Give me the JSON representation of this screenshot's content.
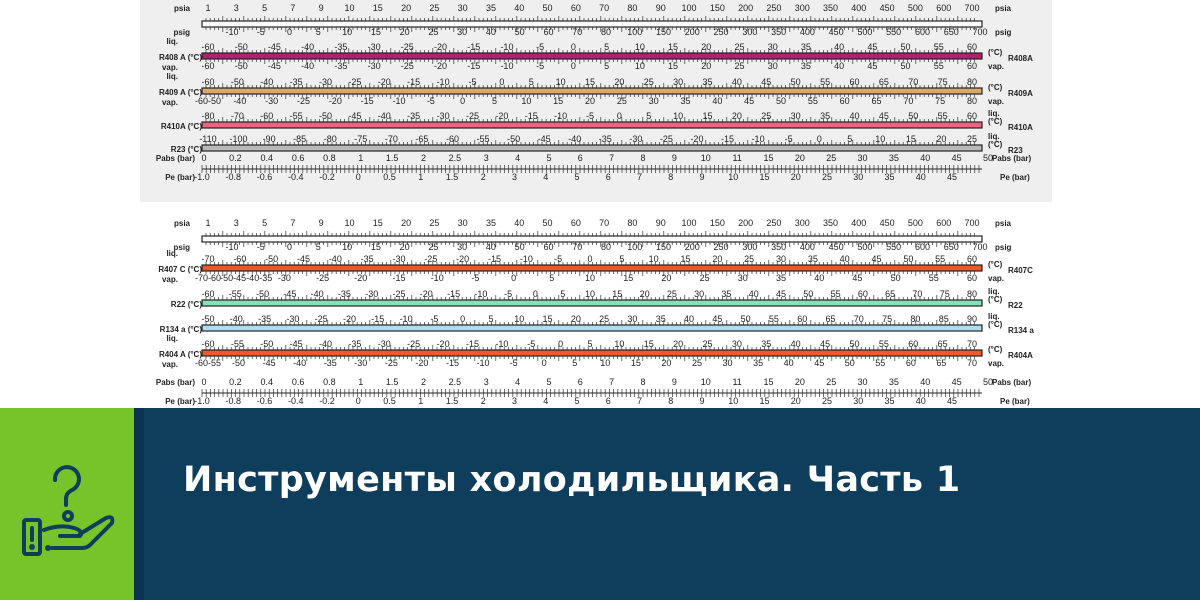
{
  "banner": {
    "title": "Инструменты холодильщика. Часть 1",
    "icon": "hand-question-icon",
    "colors": {
      "green": "#76c42a",
      "navy": "#0f3d5c",
      "icon": "#0f3d5c"
    }
  },
  "scales": {
    "labels": {
      "psia": "psia",
      "psig": "psig",
      "liq": "liq.",
      "vap": "vap.",
      "unit": "(°C)",
      "pabs": "Pabs (bar)",
      "pe": "Pe (bar)"
    },
    "psia": [
      "1",
      "3",
      "5",
      "7",
      "9",
      "10",
      "15",
      "20",
      "25",
      "30",
      "35",
      "40",
      "50",
      "60",
      "70",
      "80",
      "90",
      "100",
      "150",
      "200",
      "250",
      "300",
      "350",
      "400",
      "450",
      "500",
      "600",
      "700"
    ],
    "psig": [
      "-10",
      "-5",
      "0",
      "5",
      "10",
      "15",
      "20",
      "25",
      "30",
      "40",
      "50",
      "60",
      "70",
      "80",
      "100",
      "150",
      "200",
      "250",
      "300",
      "350",
      "400",
      "450",
      "500",
      "550",
      "600",
      "650",
      "700"
    ],
    "pabs": [
      "0",
      "0.2",
      "0.4",
      "0.6",
      "0.8",
      "1",
      "1.5",
      "2",
      "2.5",
      "3",
      "4",
      "5",
      "6",
      "7",
      "8",
      "9",
      "10",
      "11",
      "15",
      "20",
      "25",
      "30",
      "35",
      "40",
      "45",
      "50"
    ],
    "pe": [
      "-1.0",
      "-0.8",
      "-0.6",
      "-0.4",
      "-0.2",
      "0",
      "0.5",
      "1",
      "1.5",
      "2",
      "3",
      "4",
      "5",
      "6",
      "7",
      "8",
      "9",
      "10",
      "15",
      "20",
      "25",
      "30",
      "35",
      "40",
      "45"
    ],
    "top_panel": [
      {
        "name": "R408 A",
        "right": "R408A",
        "color": "#b0226e",
        "liq": [
          "-60",
          "-50",
          "-45",
          "-40",
          "-35",
          "-30",
          "-25",
          "-20",
          "-15",
          "-10",
          "-5",
          "0",
          "5",
          "10",
          "15",
          "20",
          "25",
          "30",
          "35",
          "40",
          "45",
          "50",
          "55",
          "60"
        ],
        "vap": [
          "-60",
          "-50",
          "-45",
          "-40",
          "-35",
          "-30",
          "-25",
          "-20",
          "-15",
          "-10",
          "-5",
          "0",
          "5",
          "10",
          "15",
          "20",
          "25",
          "30",
          "35",
          "40",
          "45",
          "50",
          "55",
          "60"
        ]
      },
      {
        "name": "R409 A",
        "right": "R409A",
        "color": "#dba96c",
        "liq": [
          "-60",
          "-50",
          "-40",
          "-35",
          "-30",
          "-25",
          "-20",
          "-15",
          "-10",
          "-5",
          "0",
          "5",
          "10",
          "15",
          "20",
          "25",
          "30",
          "35",
          "40",
          "45",
          "50",
          "55",
          "60",
          "65",
          "70",
          "75",
          "80"
        ],
        "vap": [
          "-60-50",
          "-40",
          "-30",
          "-25",
          "-20",
          "-15",
          "-10",
          "-5",
          "0",
          "5",
          "10",
          "15",
          "20",
          "25",
          "30",
          "35",
          "40",
          "45",
          "50",
          "55",
          "60",
          "65",
          "70",
          "75",
          "80"
        ]
      },
      {
        "name": "R410A",
        "right": "R410A",
        "color": "#ea6680",
        "liq": [
          "-80",
          "-70",
          "-60",
          "-55",
          "-50",
          "-45",
          "-40",
          "-35",
          "-30",
          "-25",
          "-20",
          "-15",
          "-10",
          "-5",
          "0",
          "5",
          "10",
          "15",
          "20",
          "25",
          "30",
          "35",
          "40",
          "45",
          "50",
          "55",
          "60"
        ]
      },
      {
        "name": "R23",
        "right": "R23",
        "color": "#b9b9b9",
        "liq": [
          "-110",
          "-100",
          "-90",
          "-85",
          "-80",
          "-75",
          "-70",
          "-65",
          "-60",
          "-55",
          "-50",
          "-45",
          "-40",
          "-35",
          "-30",
          "-25",
          "-20",
          "-15",
          "-10",
          "-5",
          "0",
          "5",
          "10",
          "15",
          "20",
          "25"
        ]
      }
    ],
    "bottom_panel": [
      {
        "name": "R407 C",
        "right": "R407C",
        "color": "#e8582a",
        "liq": [
          "-70",
          "-60",
          "-50",
          "-45",
          "-40",
          "-35",
          "-30",
          "-25",
          "-20",
          "-15",
          "-10",
          "-5",
          "0",
          "5",
          "10",
          "15",
          "20",
          "25",
          "30",
          "35",
          "40",
          "45",
          "50",
          "55",
          "60"
        ],
        "vap": [
          "-70-60",
          "-50-45-40-35",
          "-30",
          "-25",
          "-20",
          "-15",
          "-10",
          "-5",
          "0",
          "5",
          "10",
          "15",
          "20",
          "25",
          "30",
          "35",
          "40",
          "45",
          "50",
          "55",
          "60"
        ]
      },
      {
        "name": "R22",
        "right": "R22",
        "color": "#86e2b6",
        "liq": [
          "-60",
          "-55",
          "-50",
          "-45",
          "-40",
          "-35",
          "-30",
          "-25",
          "-20",
          "-15",
          "-10",
          "-5",
          "0",
          "5",
          "10",
          "15",
          "20",
          "25",
          "30",
          "35",
          "40",
          "45",
          "50",
          "55",
          "60",
          "65",
          "70",
          "75",
          "80"
        ]
      },
      {
        "name": "R134 a",
        "right": "R134 a",
        "color": "#b0dcf2",
        "liq": [
          "-50",
          "-40",
          "-35",
          "-30",
          "-25",
          "-20",
          "-15",
          "-10",
          "-5",
          "0",
          "5",
          "10",
          "15",
          "20",
          "25",
          "30",
          "35",
          "40",
          "45",
          "50",
          "55",
          "60",
          "65",
          "70",
          "75",
          "80",
          "85",
          "90"
        ]
      },
      {
        "name": "R404 A",
        "right": "R404A",
        "color": "#f05a28",
        "liq": [
          "-60",
          "-55",
          "-50",
          "-45",
          "-40",
          "-35",
          "-30",
          "-25",
          "-20",
          "-15",
          "-10",
          "-5",
          "0",
          "5",
          "10",
          "15",
          "20",
          "25",
          "30",
          "35",
          "40",
          "45",
          "50",
          "55",
          "60",
          "65",
          "70"
        ],
        "vap": [
          "-60-55",
          "-50",
          "-45",
          "-40",
          "-35",
          "-30",
          "-25",
          "-20",
          "-15",
          "-10",
          "-5",
          "0",
          "5",
          "10",
          "15",
          "20",
          "25",
          "30",
          "35",
          "40",
          "45",
          "50",
          "55",
          "60",
          "65",
          "70"
        ]
      }
    ]
  }
}
